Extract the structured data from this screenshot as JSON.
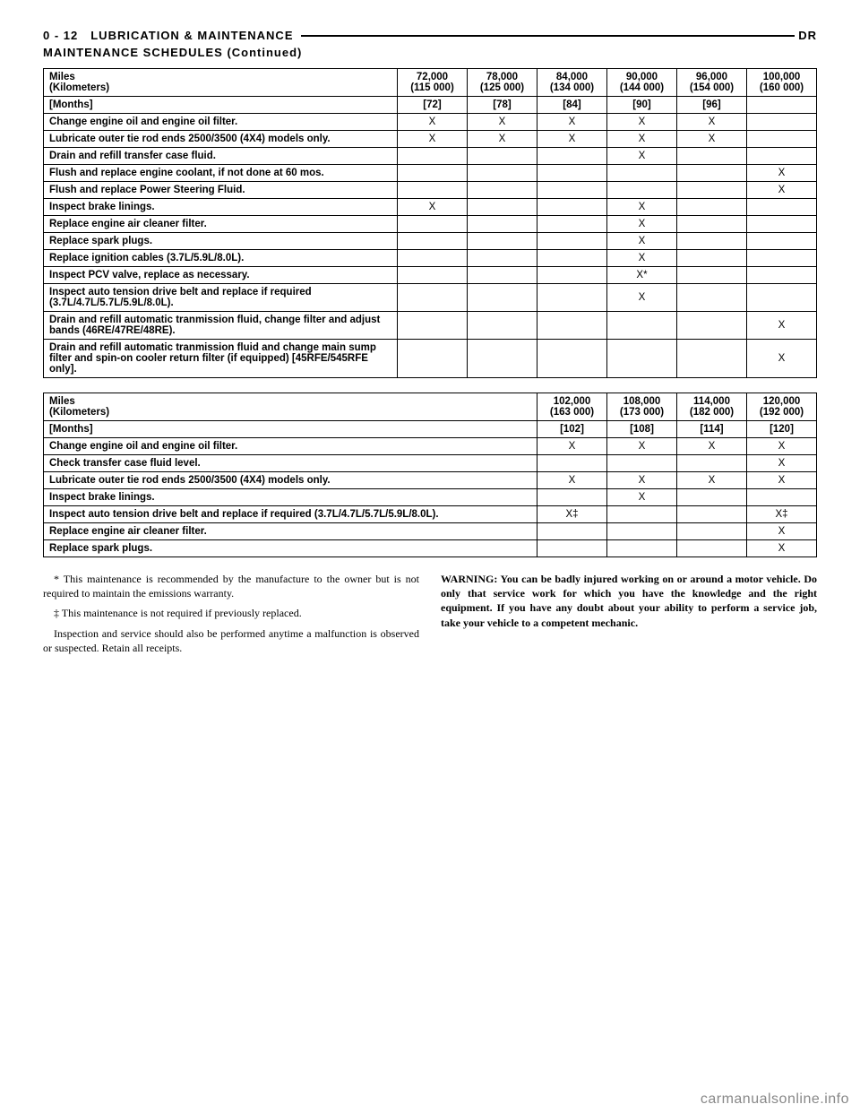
{
  "header": {
    "left": "0 - 12 LUBRICATION & MAINTENANCE",
    "right": "DR",
    "sub": "MAINTENANCE SCHEDULES (Continued)"
  },
  "table1": {
    "miles_label": "Miles",
    "km_label": "(Kilometers)",
    "months_label": "[Months]",
    "cols_miles": [
      "72,000",
      "78,000",
      "84,000",
      "90,000",
      "96,000",
      "100,000"
    ],
    "cols_km": [
      "(115 000)",
      "(125 000)",
      "(134 000)",
      "(144 000)",
      "(154 000)",
      "(160 000)"
    ],
    "cols_months": [
      "[72]",
      "[78]",
      "[84]",
      "[90]",
      "[96]",
      ""
    ],
    "rows": [
      {
        "label": "Change engine oil and engine oil filter.",
        "v": [
          "X",
          "X",
          "X",
          "X",
          "X",
          ""
        ]
      },
      {
        "label": "Lubricate outer tie rod ends 2500/3500 (4X4) models only.",
        "v": [
          "X",
          "X",
          "X",
          "X",
          "X",
          ""
        ]
      },
      {
        "label": "Drain and refill transfer case fluid.",
        "v": [
          "",
          "",
          "",
          "X",
          "",
          ""
        ]
      },
      {
        "label": "Flush and replace engine coolant, if not done at 60 mos.",
        "v": [
          "",
          "",
          "",
          "",
          "",
          "X"
        ]
      },
      {
        "label": "Flush and replace Power Steering Fluid.",
        "v": [
          "",
          "",
          "",
          "",
          "",
          "X"
        ]
      },
      {
        "label": "Inspect brake linings.",
        "v": [
          "X",
          "",
          "",
          "X",
          "",
          ""
        ]
      },
      {
        "label": "Replace engine air cleaner filter.",
        "v": [
          "",
          "",
          "",
          "X",
          "",
          ""
        ]
      },
      {
        "label": "Replace spark plugs.",
        "v": [
          "",
          "",
          "",
          "X",
          "",
          ""
        ]
      },
      {
        "label": "Replace ignition cables (3.7L/5.9L/8.0L).",
        "v": [
          "",
          "",
          "",
          "X",
          "",
          ""
        ]
      },
      {
        "label": "Inspect PCV valve, replace as necessary.",
        "v": [
          "",
          "",
          "",
          "X*",
          "",
          ""
        ]
      },
      {
        "label": "Inspect auto tension drive belt and replace if required (3.7L/4.7L/5.7L/5.9L/8.0L).",
        "v": [
          "",
          "",
          "",
          "X",
          "",
          ""
        ]
      },
      {
        "label": "Drain and refill automatic tranmission fluid, change filter and adjust bands (46RE/47RE/48RE).",
        "v": [
          "",
          "",
          "",
          "",
          "",
          "X"
        ]
      },
      {
        "label": "Drain and refill automatic tranmission fluid and change main sump filter and spin-on cooler return filter (if equipped) [45RFE/545RFE only].",
        "v": [
          "",
          "",
          "",
          "",
          "",
          "X"
        ]
      }
    ]
  },
  "table2": {
    "miles_label": "Miles",
    "km_label": "(Kilometers)",
    "months_label": "[Months]",
    "cols_miles": [
      "102,000",
      "108,000",
      "114,000",
      "120,000"
    ],
    "cols_km": [
      "(163 000)",
      "(173 000)",
      "(182 000)",
      "(192 000)"
    ],
    "cols_months": [
      "[102]",
      "[108]",
      "[114]",
      "[120]"
    ],
    "rows": [
      {
        "label": "Change engine oil and engine oil filter.",
        "v": [
          "X",
          "X",
          "X",
          "X"
        ]
      },
      {
        "label": "Check transfer case fluid level.",
        "v": [
          "",
          "",
          "",
          "X"
        ]
      },
      {
        "label": "Lubricate outer tie rod ends 2500/3500 (4X4) models only.",
        "v": [
          "X",
          "X",
          "X",
          "X"
        ]
      },
      {
        "label": "Inspect brake linings.",
        "v": [
          "",
          "X",
          "",
          ""
        ]
      },
      {
        "label": "Inspect auto tension drive belt and replace if required (3.7L/4.7L/5.7L/5.9L/8.0L).",
        "v": [
          "X‡",
          "",
          "",
          "X‡"
        ]
      },
      {
        "label": "Replace engine air cleaner filter.",
        "v": [
          "",
          "",
          "",
          "X"
        ]
      },
      {
        "label": "Replace spark plugs.",
        "v": [
          "",
          "",
          "",
          "X"
        ]
      }
    ]
  },
  "footnotes": {
    "p1": "* This maintenance is recommended by the manufacture to the owner but is not required to maintain the emissions warranty.",
    "p2": "‡ This maintenance is not required if previously replaced.",
    "p3": "Inspection and service should also be performed anytime a malfunction is observed or suspected. Retain all receipts.",
    "warn_lead": "WARNING: You can be badly injured working on or around a motor vehicle. Do only that service work for which you have the knowledge and the right equipment. If you have any doubt about your ability to perform a service job, take your vehicle to a competent mechanic."
  },
  "watermark": "carmanualsonline.info"
}
